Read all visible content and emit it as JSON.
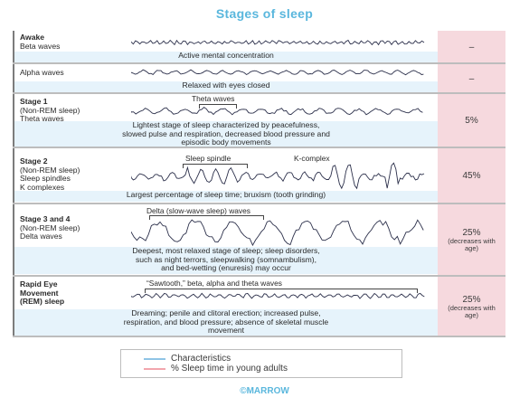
{
  "title": "Stages of sleep",
  "stages": [
    {
      "id": "awake-beta",
      "label_lines": [
        {
          "text": "Awake",
          "bold": true
        },
        {
          "text": "Beta waves",
          "bold": false
        }
      ],
      "characteristics": "Active mental concentration",
      "percent": "–",
      "percent_sub": ""
    },
    {
      "id": "alpha",
      "label_lines": [
        {
          "text": "Alpha waves",
          "bold": false
        }
      ],
      "characteristics": "Relaxed with eyes closed",
      "percent": "–",
      "percent_sub": ""
    },
    {
      "id": "stage1",
      "label_lines": [
        {
          "text": "Stage 1",
          "bold": true
        },
        {
          "text": "(Non-REM sleep)",
          "bold": false
        },
        {
          "text": "Theta waves",
          "bold": false
        }
      ],
      "wave_annotations": [
        "Theta waves"
      ],
      "characteristics_lines": [
        "Lightest stage of sleep characterized by peacefulness,",
        "slowed pulse and respiration, decreased blood pressure and",
        "episodic body movements"
      ],
      "percent": "5%",
      "percent_sub": ""
    },
    {
      "id": "stage2",
      "label_lines": [
        {
          "text": "Stage 2",
          "bold": true
        },
        {
          "text": "(Non-REM sleep)",
          "bold": false
        },
        {
          "text": "Sleep spindles",
          "bold": false
        },
        {
          "text": "K complexes",
          "bold": false
        }
      ],
      "wave_annotations": [
        "Sleep spindle",
        "K-complex"
      ],
      "characteristics": "Largest percentage of sleep time; bruxism (tooth grinding)",
      "percent": "45%",
      "percent_sub": ""
    },
    {
      "id": "stage34",
      "label_lines": [
        {
          "text": "Stage 3 and 4",
          "bold": true
        },
        {
          "text": "(Non-REM sleep)",
          "bold": false
        },
        {
          "text": "Delta waves",
          "bold": false
        }
      ],
      "wave_annotations": [
        "Delta (slow-wave sleep) waves"
      ],
      "characteristics_lines": [
        "Deepest, most relaxed stage of sleep; sleep disorders,",
        "such as night terrors, sleepwalking (somnambulism),",
        "and bed-wetting (enuresis) may occur"
      ],
      "percent": "25%",
      "percent_sub": "(decreases with age)"
    },
    {
      "id": "rem",
      "label_lines": [
        {
          "text": "Rapid Eye",
          "bold": true
        },
        {
          "text": "Movement",
          "bold": true
        },
        {
          "text": "(REM) sleep",
          "bold": true
        }
      ],
      "wave_annotations": [
        "“Sawtooth,” beta, alpha and theta waves"
      ],
      "characteristics_lines": [
        "Dreaming; penile and clitoral erection; increased pulse,",
        "respiration, and blood pressure; absence of skeletal muscle",
        "movement"
      ],
      "percent": "25%",
      "percent_sub": "(decreases with age)"
    }
  ],
  "legend": {
    "characteristics": "Characteristics",
    "percent": "% Sleep time in young adults"
  },
  "colors": {
    "accent": "#5ab7dd",
    "characteristics": "#e6f3fb",
    "percent": "#f6d9de",
    "legend_blue": "#8fc4e6",
    "legend_pink": "#f2a6ad"
  },
  "footer": "©MARROW"
}
